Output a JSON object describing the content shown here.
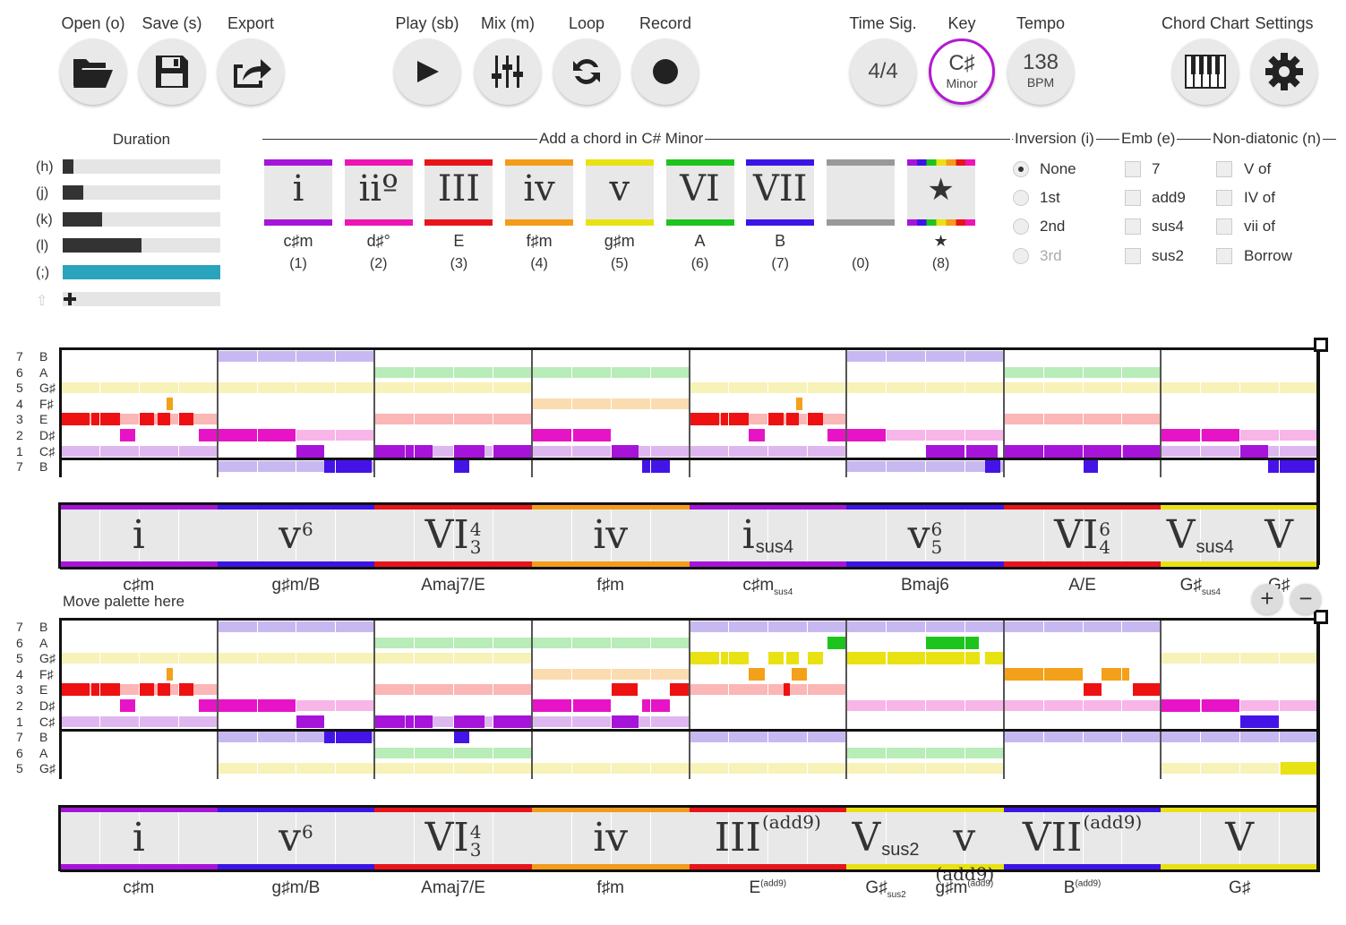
{
  "toolbar": {
    "open": "Open (o)",
    "save": "Save (s)",
    "export": "Export",
    "play": "Play (sb)",
    "mix": "Mix (m)",
    "loop": "Loop",
    "record": "Record",
    "time_sig_label": "Time Sig.",
    "time_sig_value": "4/4",
    "key_label": "Key",
    "key_value": "C♯",
    "key_mode": "Minor",
    "tempo_label": "Tempo",
    "tempo_value": "138",
    "tempo_unit": "BPM",
    "chord_chart": "Chord Chart",
    "settings": "Settings"
  },
  "duration": {
    "title": "Duration",
    "rows": [
      {
        "key": "(h)",
        "level": 0.07
      },
      {
        "key": "(j)",
        "level": 0.13
      },
      {
        "key": "(k)",
        "level": 0.25
      },
      {
        "key": "(l)",
        "level": 0.5
      },
      {
        "key": "(;)",
        "level": 1.0
      }
    ]
  },
  "palette": {
    "title": "Add a chord in C# Minor",
    "chords": [
      {
        "numeral": "i",
        "name": "c♯m",
        "key": "(1)",
        "color": "#a614d9"
      },
      {
        "numeral": "iiº",
        "name": "d♯°",
        "key": "(2)",
        "color": "#ee14b4"
      },
      {
        "numeral": "III",
        "name": "E",
        "key": "(3)",
        "color": "#e8141a"
      },
      {
        "numeral": "iv",
        "name": "f♯m",
        "key": "(4)",
        "color": "#f39c1a"
      },
      {
        "numeral": "v",
        "name": "g♯m",
        "key": "(5)",
        "color": "#e9e213"
      },
      {
        "numeral": "VI",
        "name": "A",
        "key": "(6)",
        "color": "#1ec41e"
      },
      {
        "numeral": "VII",
        "name": "B",
        "key": "(7)",
        "color": "#3d14e6"
      },
      {
        "numeral": "",
        "name": "",
        "key": "(0)",
        "color": "#999999"
      },
      {
        "numeral": "★",
        "name": "★",
        "key": "(8)",
        "color": "rainbow"
      }
    ]
  },
  "inversion": {
    "title": "Inversion (i)",
    "options": [
      "None",
      "1st",
      "2nd",
      "3rd"
    ],
    "selected": "None"
  },
  "emb": {
    "title": "Emb (e)",
    "options": [
      "7",
      "add9",
      "sus4",
      "sus2"
    ]
  },
  "nondiatonic": {
    "title": "Non-diatonic (n)",
    "options": [
      "V of",
      "IV of",
      "vii of",
      "Borrow"
    ]
  },
  "roll1": {
    "notes": [
      {
        "num": "7",
        "pitch": "B"
      },
      {
        "num": "6",
        "pitch": "A"
      },
      {
        "num": "5",
        "pitch": "G♯"
      },
      {
        "num": "4",
        "pitch": "F♯"
      },
      {
        "num": "3",
        "pitch": "E"
      },
      {
        "num": "2",
        "pitch": "D♯"
      },
      {
        "num": "1",
        "pitch": "C♯"
      },
      {
        "num": "7",
        "pitch": "B"
      }
    ],
    "chords": [
      {
        "numeral": "i",
        "sup": "",
        "sub": "",
        "name": "c♯m",
        "name_sup": "",
        "color": "#a614d9"
      },
      {
        "numeral": "v",
        "sup": "6",
        "sub": "",
        "name": "g♯m/B",
        "name_sup": "",
        "color": "#3d14e6"
      },
      {
        "numeral": "VI",
        "sup": "4",
        "sub": "3",
        "name": "Amaj7/E",
        "name_sup": "",
        "color": "#e8141a"
      },
      {
        "numeral": "iv",
        "sup": "",
        "sub": "",
        "name": "f♯m",
        "name_sup": "",
        "color": "#f39c1a"
      },
      {
        "numeral": "i",
        "sup": "",
        "sub": "sus4",
        "name": "c♯m",
        "name_sup": "sus4",
        "color": "#a614d9"
      },
      {
        "numeral": "v",
        "sup": "6",
        "sub": "5",
        "name": "Bmaj6",
        "name_sup": "",
        "color": "#3d14e6"
      },
      {
        "numeral": "VI",
        "sup": "6",
        "sub": "4",
        "name": "A/E",
        "name_sup": "",
        "color": "#e8141a"
      },
      {
        "numeral": "V",
        "sup": "",
        "sub": "sus4",
        "name": "G♯",
        "name_sup": "sus4",
        "color": "#e9e213"
      },
      {
        "numeral": "V",
        "sup": "",
        "sub": "",
        "name": "G♯",
        "name_sup": "",
        "color": "#e9e213"
      }
    ]
  },
  "move_palette": "Move palette here",
  "zoom": {
    "plus": "+",
    "minus": "−"
  },
  "roll2": {
    "notes": [
      {
        "num": "7",
        "pitch": "B"
      },
      {
        "num": "6",
        "pitch": "A"
      },
      {
        "num": "5",
        "pitch": "G♯"
      },
      {
        "num": "4",
        "pitch": "F♯"
      },
      {
        "num": "3",
        "pitch": "E"
      },
      {
        "num": "2",
        "pitch": "D♯"
      },
      {
        "num": "1",
        "pitch": "C♯"
      },
      {
        "num": "7",
        "pitch": "B"
      },
      {
        "num": "6",
        "pitch": "A"
      },
      {
        "num": "5",
        "pitch": "G♯"
      }
    ],
    "chords": [
      {
        "numeral": "i",
        "sup": "",
        "sub": "",
        "name": "c♯m",
        "name_sup": "",
        "color": "#a614d9"
      },
      {
        "numeral": "v",
        "sup": "6",
        "sub": "",
        "name": "g♯m/B",
        "name_sup": "",
        "color": "#3d14e6"
      },
      {
        "numeral": "VI",
        "sup": "4",
        "sub": "3",
        "name": "Amaj7/E",
        "name_sup": "",
        "color": "#e8141a"
      },
      {
        "numeral": "iv",
        "sup": "",
        "sub": "",
        "name": "f♯m",
        "name_sup": "",
        "color": "#f39c1a"
      },
      {
        "numeral": "III",
        "sup": "(add9)",
        "sub": "",
        "name": "E",
        "name_sup": "(add9)",
        "color": "#e8141a"
      },
      {
        "numeral": "V",
        "sup": "",
        "sub": "sus2",
        "name": "G♯",
        "name_sup": "sus2",
        "color": "#e9e213"
      },
      {
        "numeral": "v",
        "sup": "(add9)",
        "sub": "",
        "name": "g♯m",
        "name_sup": "(add9)",
        "color": "#e9e213"
      },
      {
        "numeral": "VII",
        "sup": "(add9)",
        "sub": "",
        "name": "B",
        "name_sup": "(add9)",
        "color": "#3d14e6"
      },
      {
        "numeral": "V",
        "sup": "",
        "sub": "",
        "name": "G♯",
        "name_sup": "",
        "color": "#e9e213"
      }
    ]
  }
}
